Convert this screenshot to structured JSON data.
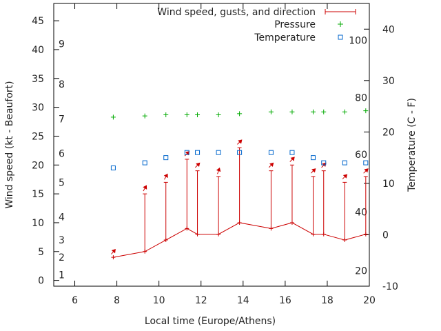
{
  "chart_data": {
    "type": "line",
    "xlabel": "Local time (Europe/Athens)",
    "ylabel_left": "Wind speed (kt - Beaufort)",
    "ylabel_right": "Temperature (C - F)",
    "xlim": [
      5,
      20
    ],
    "ylim_left": [
      -1,
      48
    ],
    "ylim_right": [
      -10,
      45
    ],
    "xticks": [
      "6",
      "8",
      "10",
      "12",
      "14",
      "16",
      "18",
      "20"
    ],
    "yticks_left": [
      "0",
      "5",
      "10",
      "15",
      "20",
      "25",
      "30",
      "35",
      "40",
      "45"
    ],
    "yticks_right": [
      "-10",
      "0",
      "10",
      "20",
      "30",
      "40"
    ],
    "beaufort_labels": [
      {
        "label": "1",
        "kt": 1
      },
      {
        "label": "2",
        "kt": 4
      },
      {
        "label": "3",
        "kt": 7
      },
      {
        "label": "4",
        "kt": 11
      },
      {
        "label": "5",
        "kt": 17
      },
      {
        "label": "6",
        "kt": 22
      },
      {
        "label": "7",
        "kt": 28
      },
      {
        "label": "8",
        "kt": 34
      },
      {
        "label": "9",
        "kt": 41
      }
    ],
    "fahrenheit_labels": [
      {
        "label": "20",
        "c": -7
      },
      {
        "label": "40",
        "c": 4.4
      },
      {
        "label": "60",
        "c": 15.6
      },
      {
        "label": "80",
        "c": 26.7
      },
      {
        "label": "100",
        "c": 37.8
      }
    ],
    "legend_position": "top-right",
    "grid": false,
    "series": [
      {
        "name": "Wind speed, gusts, and direction",
        "color": "#cc0000",
        "x": [
          7.83,
          9.33,
          10.33,
          11.33,
          11.83,
          12.83,
          13.83,
          15.33,
          16.33,
          17.33,
          17.83,
          18.83,
          19.83
        ],
        "values": [
          4,
          5,
          7,
          9,
          8,
          8,
          10,
          9,
          10,
          8,
          8,
          7,
          8
        ],
        "gusts": [
          4,
          15,
          17,
          21,
          19,
          18,
          23,
          19,
          20,
          18,
          19,
          17,
          18
        ],
        "direction_deg": [
          220,
          210,
          210,
          225,
          225,
          200,
          225,
          225,
          225,
          225,
          225,
          225,
          225
        ]
      },
      {
        "name": "Pressure",
        "color": "#00aa00",
        "x": [
          7.83,
          9.33,
          10.33,
          11.33,
          11.83,
          12.83,
          13.83,
          15.33,
          16.33,
          17.33,
          17.83,
          18.83,
          19.83
        ],
        "values": [
          28.3,
          28.5,
          28.7,
          28.7,
          28.7,
          28.7,
          28.9,
          29.2,
          29.2,
          29.2,
          29.2,
          29.2,
          29.4
        ]
      },
      {
        "name": "Temperature",
        "color": "#0066cc",
        "x": [
          7.83,
          9.33,
          10.33,
          11.33,
          11.83,
          12.83,
          13.83,
          15.33,
          16.33,
          17.33,
          17.83,
          18.83,
          19.83
        ],
        "values": [
          13,
          14,
          15,
          16,
          16,
          16,
          16,
          16,
          16,
          15,
          14,
          14,
          14
        ]
      }
    ]
  }
}
